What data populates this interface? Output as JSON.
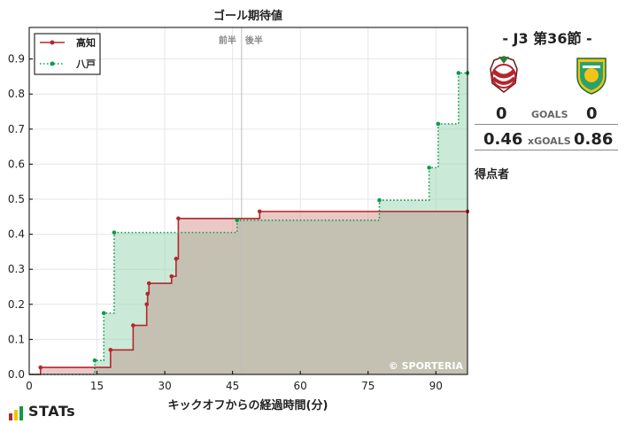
{
  "chart_data": {
    "type": "line",
    "title": "ゴール期待値",
    "xlabel": "キックオフからの経過時間(分)",
    "ylabel": "",
    "xlim": [
      0,
      97
    ],
    "ylim": [
      0,
      0.99
    ],
    "xticks": [
      0,
      15,
      30,
      45,
      60,
      75,
      90
    ],
    "yticks": [
      0.0,
      0.1,
      0.2,
      0.3,
      0.4,
      0.5,
      0.6,
      0.7,
      0.8,
      0.9
    ],
    "halftime": 47,
    "half_labels": [
      "前半",
      "後半"
    ],
    "legend_position": "top-left",
    "watermark": "© SPORTERIA",
    "series": [
      {
        "name": "高知",
        "color": "#b5262e",
        "fill": "#d99a96",
        "style": "solid",
        "points": [
          [
            0,
            0.0
          ],
          [
            2.5,
            0.02
          ],
          [
            18,
            0.07
          ],
          [
            23,
            0.14
          ],
          [
            26,
            0.2
          ],
          [
            26.2,
            0.23
          ],
          [
            26.5,
            0.26
          ],
          [
            31.5,
            0.28
          ],
          [
            32.5,
            0.33
          ],
          [
            33,
            0.445
          ],
          [
            51,
            0.465
          ],
          [
            97,
            0.465
          ]
        ]
      },
      {
        "name": "八戸",
        "color": "#0d9a4c",
        "fill": "#9fd7b6",
        "style": "dotted",
        "points": [
          [
            0,
            0.0
          ],
          [
            14.5,
            0.04
          ],
          [
            16.5,
            0.175
          ],
          [
            18.8,
            0.405
          ],
          [
            46,
            0.44
          ],
          [
            77.5,
            0.497
          ],
          [
            88.5,
            0.59
          ],
          [
            90.5,
            0.715
          ],
          [
            95,
            0.86
          ],
          [
            97,
            0.86
          ]
        ]
      }
    ]
  },
  "match": {
    "title": "-  J3 第36節  -",
    "goals_label": "GOALS",
    "home_goals": "0",
    "away_goals": "0",
    "xgoals_label": "xGOALS",
    "home_xg": "0.46",
    "away_xg": "0.86",
    "scorers_label": "得点者"
  },
  "brand": {
    "name": "STATs"
  },
  "colors": {
    "overlap": "#c4c1b2",
    "grid": "#e6e6e6"
  }
}
